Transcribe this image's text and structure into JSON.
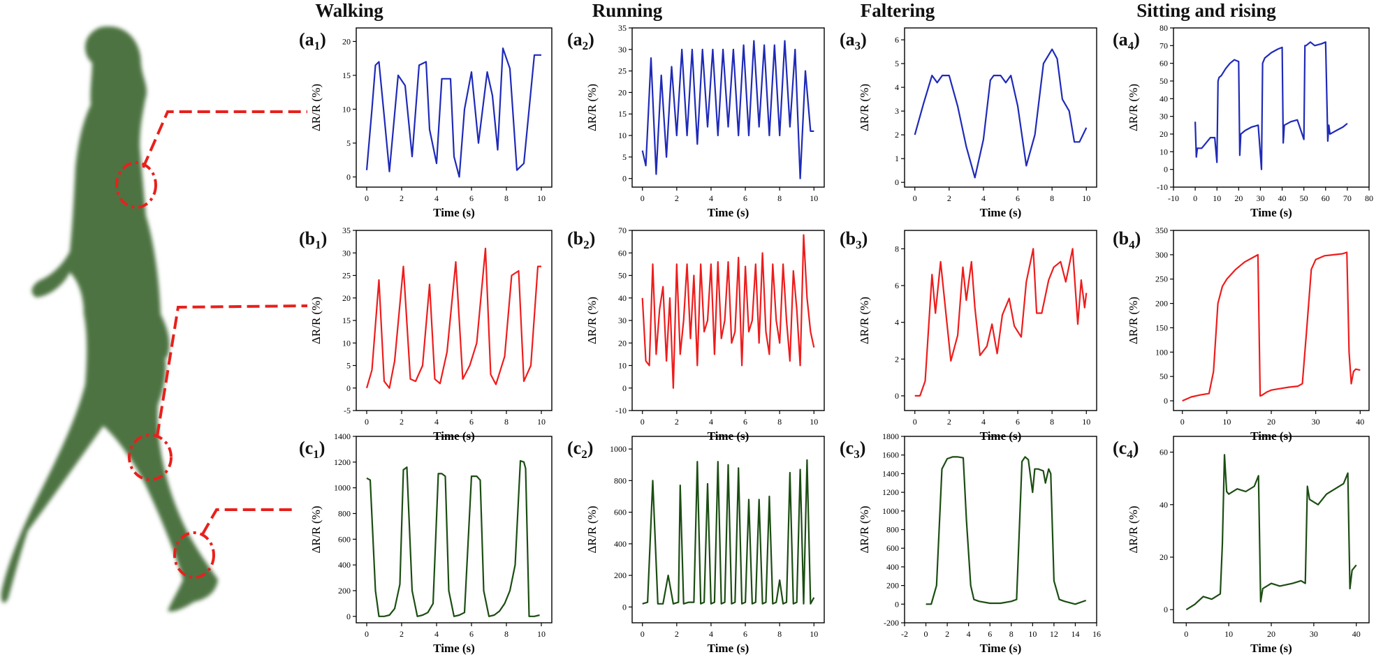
{
  "columns": [
    "Walking",
    "Running",
    "Faltering",
    "Sitting and rising"
  ],
  "panel_labels": {
    "a1": {
      "letter": "a",
      "sub": "1"
    },
    "a2": {
      "letter": "a",
      "sub": "2"
    },
    "a3": {
      "letter": "a",
      "sub": "3"
    },
    "a4": {
      "letter": "a",
      "sub": "4"
    },
    "b1": {
      "letter": "b",
      "sub": "1"
    },
    "b2": {
      "letter": "b",
      "sub": "2"
    },
    "b3": {
      "letter": "b",
      "sub": "3"
    },
    "b4": {
      "letter": "b",
      "sub": "4"
    },
    "c1": {
      "letter": "c",
      "sub": "1"
    },
    "c2": {
      "letter": "c",
      "sub": "2"
    },
    "c3": {
      "letter": "c",
      "sub": "3"
    },
    "c4": {
      "letter": "c",
      "sub": "4"
    }
  },
  "colors": {
    "row_a": "#1f2ab8",
    "row_b": "#ee1c1c",
    "row_c": "#1b4d12",
    "figure": "#4d7343",
    "marker": "#e8201c"
  },
  "chart_data": [
    {
      "id": "a1",
      "type": "line",
      "title": "Walking",
      "xlabel": "Time (s)",
      "ylabel": "ΔR/R (%)",
      "xlim": [
        -0.6,
        10.6
      ],
      "ylim": [
        -1.5,
        22
      ],
      "xticks": [
        0,
        2,
        4,
        6,
        8,
        10
      ],
      "yticks": [
        0,
        5,
        10,
        15,
        20
      ],
      "x": [
        0,
        0.3,
        0.5,
        0.7,
        1.0,
        1.3,
        1.8,
        2.2,
        2.6,
        3.0,
        3.4,
        3.6,
        4.0,
        4.3,
        4.8,
        5.0,
        5.3,
        5.6,
        6.0,
        6.4,
        6.9,
        7.2,
        7.5,
        7.8,
        8.2,
        8.6,
        9.0,
        9.3,
        9.6,
        10.0
      ],
      "y": [
        1,
        10,
        16.5,
        17,
        9,
        0.8,
        15,
        13.5,
        3,
        16.5,
        17,
        7,
        2,
        14.5,
        14.5,
        3,
        0,
        10,
        15.5,
        5,
        15.5,
        12,
        4,
        19,
        16,
        1,
        2,
        10,
        18,
        18
      ]
    },
    {
      "id": "a2",
      "type": "line",
      "title": "Running",
      "xlabel": "Time (s)",
      "ylabel": "ΔR/R (%)",
      "xlim": [
        -0.6,
        10.6
      ],
      "ylim": [
        -2,
        35
      ],
      "xticks": [
        0,
        2,
        4,
        6,
        8,
        10
      ],
      "yticks": [
        0,
        5,
        10,
        15,
        20,
        25,
        30,
        35
      ],
      "x": [
        0,
        0.2,
        0.5,
        0.8,
        1.1,
        1.4,
        1.7,
        2.0,
        2.3,
        2.6,
        2.9,
        3.2,
        3.5,
        3.8,
        4.1,
        4.4,
        4.7,
        5.0,
        5.3,
        5.6,
        5.9,
        6.2,
        6.5,
        6.8,
        7.1,
        7.4,
        7.7,
        8.0,
        8.3,
        8.6,
        8.9,
        9.2,
        9.5,
        9.8,
        10.0
      ],
      "y": [
        6.5,
        3,
        28,
        1,
        24,
        5,
        26,
        10,
        30,
        10,
        30,
        8,
        30,
        12,
        30,
        10,
        30,
        12,
        30,
        10,
        31,
        10,
        32,
        12,
        31,
        10,
        31,
        10,
        32,
        12,
        30,
        0,
        25,
        11,
        11
      ]
    },
    {
      "id": "a3",
      "type": "line",
      "title": "Faltering",
      "xlabel": "Time (s)",
      "ylabel": "ΔR/R (%)",
      "xlim": [
        -0.6,
        10.6
      ],
      "ylim": [
        -0.2,
        6.5
      ],
      "xticks": [
        0,
        2,
        4,
        6,
        8,
        10
      ],
      "yticks": [
        0,
        1,
        2,
        3,
        4,
        5,
        6
      ],
      "x": [
        0,
        0.5,
        1.0,
        1.3,
        1.6,
        2.0,
        2.5,
        3.0,
        3.5,
        4.0,
        4.4,
        4.6,
        5.0,
        5.3,
        5.6,
        6.0,
        6.5,
        7.0,
        7.5,
        8.0,
        8.3,
        8.6,
        9.0,
        9.3,
        9.6,
        10.0
      ],
      "y": [
        2,
        3.3,
        4.5,
        4.2,
        4.5,
        4.5,
        3.2,
        1.5,
        0.2,
        1.8,
        4.3,
        4.5,
        4.5,
        4.2,
        4.5,
        3.2,
        0.7,
        2.0,
        5.0,
        5.6,
        5.2,
        3.5,
        3.0,
        1.7,
        1.7,
        2.3
      ]
    },
    {
      "id": "a4",
      "type": "line",
      "title": "Sitting and rising",
      "xlabel": "Time (s)",
      "ylabel": "ΔR/R (%)",
      "xlim": [
        -10,
        80
      ],
      "ylim": [
        -10,
        80
      ],
      "xticks": [
        -10,
        0,
        10,
        20,
        30,
        40,
        50,
        60,
        70,
        80
      ],
      "yticks": [
        -10,
        0,
        10,
        20,
        30,
        40,
        50,
        60,
        70,
        80
      ],
      "x": [
        0,
        0.5,
        1,
        3,
        5,
        7,
        9,
        10,
        10.5,
        11,
        12,
        14,
        16,
        18,
        20,
        20.5,
        21,
        23,
        26,
        29,
        30.5,
        31,
        32,
        35,
        38,
        40,
        40.5,
        41,
        44,
        47,
        50,
        50.5,
        51,
        53,
        55,
        58,
        60,
        61,
        61.5,
        62,
        65,
        68,
        70
      ],
      "y": [
        27,
        7,
        12,
        12,
        15,
        18,
        18,
        4,
        50,
        52,
        53,
        57,
        60,
        62,
        61,
        8,
        20,
        22,
        24,
        25,
        0,
        60,
        63,
        66,
        68,
        69,
        15,
        25,
        27,
        28,
        17,
        70,
        70,
        72,
        70,
        71,
        72,
        16,
        25,
        20,
        22,
        24,
        26
      ]
    },
    {
      "id": "b1",
      "type": "line",
      "title": "Walking",
      "xlabel": "Time (s)",
      "ylabel": "ΔR/R (%)",
      "xlim": [
        -0.6,
        10.6
      ],
      "ylim": [
        -5,
        35
      ],
      "xticks": [
        0,
        2,
        4,
        6,
        8,
        10
      ],
      "yticks": [
        -5,
        0,
        5,
        10,
        15,
        20,
        25,
        30,
        35
      ],
      "x": [
        0,
        0.3,
        0.7,
        1.0,
        1.3,
        1.6,
        2.1,
        2.5,
        2.8,
        3.2,
        3.6,
        3.9,
        4.2,
        4.6,
        5.1,
        5.5,
        5.9,
        6.3,
        6.8,
        7.1,
        7.4,
        7.9,
        8.3,
        8.7,
        9.0,
        9.4,
        9.8,
        10.0
      ],
      "y": [
        0,
        4,
        24,
        1.5,
        0,
        6,
        27,
        2,
        1.5,
        5,
        23,
        2,
        1,
        8,
        28,
        2,
        5,
        10,
        31,
        3,
        0.8,
        7,
        25,
        26,
        1.5,
        5,
        27,
        27
      ]
    },
    {
      "id": "b2",
      "type": "line",
      "title": "Running",
      "xlabel": "Time (s)",
      "ylabel": "ΔR/R (%)",
      "xlim": [
        -0.6,
        10.6
      ],
      "ylim": [
        -10,
        70
      ],
      "xticks": [
        0,
        2,
        4,
        6,
        8,
        10
      ],
      "yticks": [
        -10,
        0,
        10,
        20,
        30,
        40,
        50,
        60,
        70
      ],
      "x": [
        0,
        0.2,
        0.4,
        0.6,
        0.8,
        1.0,
        1.2,
        1.4,
        1.6,
        1.8,
        2.0,
        2.2,
        2.4,
        2.6,
        2.8,
        3.0,
        3.2,
        3.4,
        3.6,
        3.8,
        4.0,
        4.2,
        4.4,
        4.6,
        4.8,
        5.0,
        5.2,
        5.4,
        5.6,
        5.8,
        6.0,
        6.2,
        6.4,
        6.6,
        6.8,
        7.0,
        7.2,
        7.4,
        7.6,
        7.8,
        8.0,
        8.2,
        8.4,
        8.6,
        8.8,
        9.0,
        9.2,
        9.4,
        9.6,
        9.8,
        10.0
      ],
      "y": [
        40,
        12,
        10,
        55,
        15,
        35,
        45,
        12,
        40,
        0,
        55,
        15,
        30,
        55,
        22,
        50,
        10,
        55,
        25,
        30,
        55,
        15,
        56,
        22,
        30,
        56,
        20,
        25,
        58,
        10,
        54,
        25,
        30,
        55,
        20,
        60,
        25,
        15,
        55,
        30,
        20,
        55,
        30,
        12,
        52,
        35,
        10,
        68,
        40,
        25,
        18
      ]
    },
    {
      "id": "b3",
      "type": "line",
      "title": "Faltering",
      "xlabel": "Time (s)",
      "ylabel": "ΔR/R (%)",
      "xlim": [
        -0.6,
        10.6
      ],
      "ylim": [
        -0.8,
        9
      ],
      "xticks": [
        0,
        2,
        4,
        6,
        8,
        10
      ],
      "yticks": [
        0,
        2,
        4,
        6,
        8
      ],
      "x": [
        0,
        0.3,
        0.6,
        1.0,
        1.2,
        1.5,
        1.8,
        2.1,
        2.5,
        2.8,
        3.0,
        3.3,
        3.5,
        3.8,
        4.2,
        4.5,
        4.8,
        5.1,
        5.5,
        5.8,
        6.2,
        6.5,
        6.9,
        7.1,
        7.4,
        7.8,
        8.1,
        8.5,
        8.8,
        9.2,
        9.5,
        9.7,
        9.9,
        10.0
      ],
      "y": [
        0,
        0,
        0.8,
        6.6,
        4.5,
        7.3,
        4.6,
        1.9,
        3.3,
        7.0,
        5.2,
        7.3,
        4.8,
        2.2,
        2.7,
        3.9,
        2.3,
        4.4,
        5.3,
        3.8,
        3.2,
        6.2,
        8.0,
        4.5,
        4.5,
        6.3,
        7.0,
        7.3,
        6.2,
        8.0,
        3.9,
        6.3,
        4.8,
        5.6
      ]
    },
    {
      "id": "b4",
      "type": "line",
      "title": "Sitting and rising",
      "xlabel": "Time (s)",
      "ylabel": "ΔR/R (%)",
      "xlim": [
        -2,
        42
      ],
      "ylim": [
        -20,
        350
      ],
      "xticks": [
        0,
        10,
        20,
        30,
        40
      ],
      "yticks": [
        0,
        50,
        100,
        150,
        200,
        250,
        300,
        350
      ],
      "x": [
        0,
        2,
        4,
        6,
        7,
        8,
        9,
        10,
        12,
        14,
        16,
        17,
        17.5,
        18,
        19,
        20,
        22,
        24,
        26,
        27,
        28,
        29,
        30,
        32,
        34,
        36,
        37,
        37.5,
        38,
        38.5,
        39,
        40
      ],
      "y": [
        0,
        8,
        12,
        15,
        60,
        200,
        235,
        250,
        270,
        285,
        295,
        300,
        10,
        12,
        18,
        22,
        25,
        28,
        30,
        35,
        150,
        270,
        290,
        298,
        300,
        302,
        305,
        100,
        35,
        60,
        65,
        63
      ]
    },
    {
      "id": "c1",
      "type": "line",
      "title": "Walking",
      "xlabel": "Time (s)",
      "ylabel": "ΔR/R (%)",
      "xlim": [
        -0.6,
        10.6
      ],
      "ylim": [
        -50,
        1400
      ],
      "xticks": [
        0,
        2,
        4,
        6,
        8,
        10
      ],
      "yticks": [
        0,
        200,
        400,
        600,
        800,
        1000,
        1200,
        1400
      ],
      "x": [
        0,
        0.2,
        0.5,
        0.7,
        1.0,
        1.3,
        1.6,
        1.9,
        2.1,
        2.3,
        2.6,
        2.9,
        3.2,
        3.5,
        3.8,
        4.1,
        4.3,
        4.5,
        4.7,
        5.0,
        5.3,
        5.6,
        6.0,
        6.3,
        6.5,
        6.7,
        7.0,
        7.3,
        7.6,
        7.9,
        8.2,
        8.5,
        8.8,
        9.0,
        9.1,
        9.3,
        9.6,
        9.9
      ],
      "y": [
        1075,
        1060,
        200,
        0,
        0,
        10,
        60,
        250,
        1140,
        1160,
        200,
        0,
        10,
        30,
        100,
        1110,
        1110,
        1090,
        200,
        0,
        10,
        30,
        1090,
        1090,
        1060,
        200,
        0,
        10,
        40,
        100,
        200,
        400,
        1210,
        1200,
        1150,
        0,
        0,
        10
      ]
    },
    {
      "id": "c2",
      "type": "line",
      "title": "Running",
      "xlabel": "Time (s)",
      "ylabel": "ΔR/R (%)",
      "xlim": [
        -0.6,
        10.6
      ],
      "ylim": [
        -100,
        1080
      ],
      "xticks": [
        0,
        2,
        4,
        6,
        8,
        10
      ],
      "yticks": [
        0,
        200,
        400,
        600,
        800,
        1000
      ],
      "x": [
        0,
        0.3,
        0.6,
        0.9,
        1.2,
        1.5,
        1.8,
        2.1,
        2.2,
        2.4,
        2.7,
        3.0,
        3.2,
        3.4,
        3.6,
        3.8,
        4.0,
        4.2,
        4.4,
        4.6,
        4.8,
        5.0,
        5.2,
        5.4,
        5.6,
        5.8,
        6.0,
        6.2,
        6.4,
        6.6,
        6.8,
        7.0,
        7.2,
        7.4,
        7.6,
        7.8,
        8.0,
        8.2,
        8.4,
        8.6,
        8.8,
        9.0,
        9.2,
        9.4,
        9.6,
        9.8,
        10.0
      ],
      "y": [
        20,
        30,
        800,
        20,
        20,
        200,
        20,
        30,
        770,
        20,
        30,
        30,
        920,
        20,
        30,
        780,
        20,
        30,
        920,
        20,
        30,
        900,
        20,
        30,
        880,
        20,
        30,
        680,
        20,
        30,
        680,
        20,
        30,
        700,
        20,
        30,
        170,
        20,
        30,
        850,
        20,
        30,
        870,
        20,
        930,
        20,
        60
      ]
    },
    {
      "id": "c3",
      "type": "line",
      "title": "Faltering",
      "xlabel": "Time (s)",
      "ylabel": "ΔR/R (%)",
      "xlim": [
        -2,
        16
      ],
      "ylim": [
        -200,
        1800
      ],
      "xticks": [
        -2,
        0,
        2,
        4,
        6,
        8,
        10,
        12,
        14,
        16
      ],
      "yticks": [
        -200,
        0,
        200,
        400,
        600,
        800,
        1000,
        1200,
        1400,
        1600,
        1800
      ],
      "x": [
        0,
        0.5,
        1.0,
        1.5,
        2.0,
        2.5,
        3.0,
        3.5,
        3.8,
        4.2,
        4.5,
        5.0,
        6.0,
        7.0,
        8.0,
        8.5,
        9.0,
        9.3,
        9.6,
        10.0,
        10.2,
        10.5,
        11.0,
        11.2,
        11.5,
        11.7,
        12.0,
        12.5,
        13.0,
        14.0,
        15.0
      ],
      "y": [
        0,
        0,
        200,
        1450,
        1560,
        1580,
        1580,
        1570,
        900,
        200,
        50,
        30,
        10,
        10,
        30,
        50,
        1530,
        1580,
        1550,
        1200,
        1450,
        1450,
        1430,
        1300,
        1450,
        1400,
        250,
        50,
        30,
        0,
        40
      ]
    },
    {
      "id": "c4",
      "type": "line",
      "title": "Sitting and rising",
      "xlabel": "Time (s)",
      "ylabel": "ΔR/R (%)",
      "xlim": [
        -3,
        43
      ],
      "ylim": [
        -5,
        66
      ],
      "xticks": [
        0,
        10,
        20,
        30,
        40
      ],
      "yticks": [
        0,
        20,
        40,
        60
      ],
      "x": [
        0,
        2,
        4,
        6,
        8,
        8.5,
        9,
        9.5,
        10,
        12,
        14,
        16,
        17,
        17.5,
        18,
        20,
        22,
        25,
        27,
        28,
        28.5,
        29,
        31,
        33,
        35,
        37,
        38,
        38.5,
        39,
        40
      ],
      "y": [
        0,
        2,
        5,
        4,
        6,
        25,
        59,
        45,
        44,
        46,
        45,
        47,
        51,
        3,
        8,
        10,
        9,
        10,
        11,
        10,
        47,
        42,
        40,
        44,
        46,
        48,
        52,
        8,
        15,
        17
      ]
    }
  ]
}
